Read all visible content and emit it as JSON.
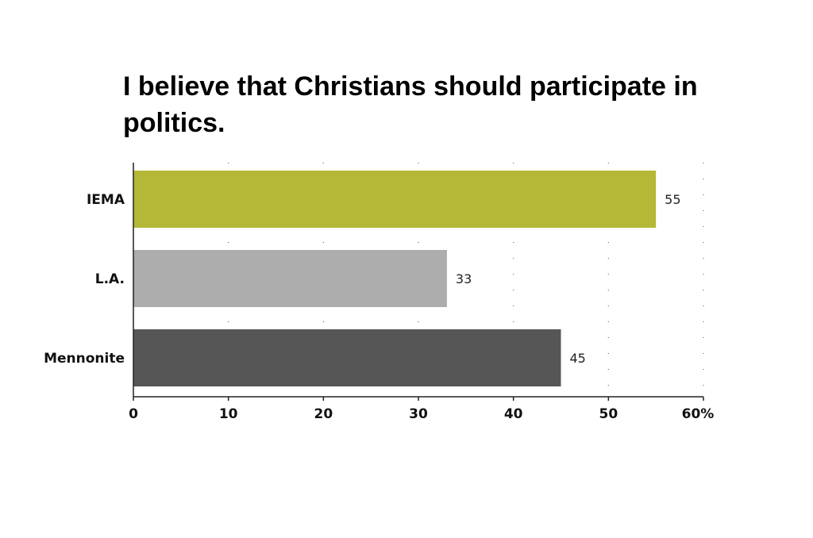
{
  "chart_data": {
    "type": "bar",
    "orientation": "horizontal",
    "title": "I believe that Christians should participate in politics.",
    "categories": [
      "IEMA",
      "L.A.",
      "Mennonite"
    ],
    "values": [
      55,
      33,
      45
    ],
    "value_labels": [
      "55",
      "33",
      "45"
    ],
    "bar_colors": [
      "#b4b836",
      "#adadad",
      "#565656"
    ],
    "xlim": [
      0,
      60
    ],
    "x_ticks": [
      0,
      10,
      20,
      30,
      40,
      50,
      60
    ],
    "x_tick_labels": [
      "0",
      "10",
      "20",
      "30",
      "40",
      "50",
      "60%"
    ],
    "grid": "vertical dotted",
    "legend": "none"
  }
}
